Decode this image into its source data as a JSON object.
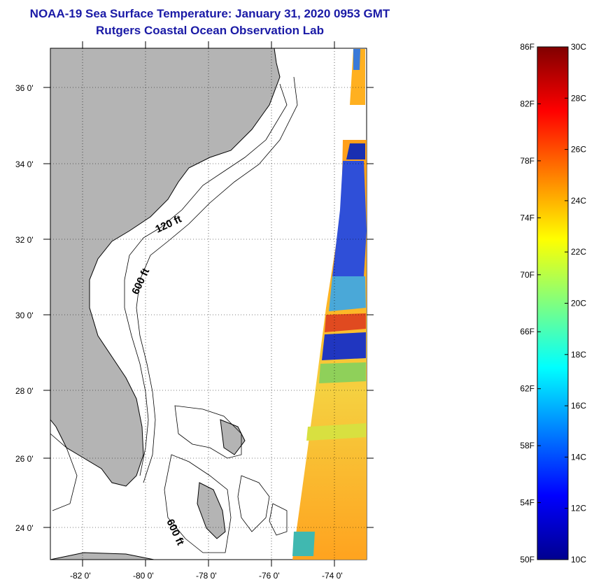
{
  "title": {
    "line1": "NOAA-19 Sea Surface Temperature:  January 31, 2020 0953 GMT",
    "line2": "Rutgers Coastal Ocean Observation Lab"
  },
  "map": {
    "lat_labels": [
      "36 0'",
      "34 0'",
      "32 0'",
      "30 0'",
      "28 0'",
      "26 0'",
      "24 0'"
    ],
    "lon_labels": [
      "-82 0'",
      "-80 0'",
      "-78 0'",
      "-76 0'",
      "-74 0'"
    ],
    "lat_range": [
      23,
      37
    ],
    "lon_range": [
      -83,
      -73
    ],
    "contour_labels": [
      "120 ft",
      "600 ft",
      "600 ft"
    ],
    "land_color": "#b4b4b4",
    "grid": true
  },
  "colorbar": {
    "fahrenheit_labels": [
      "86F",
      "82F",
      "78F",
      "74F",
      "70F",
      "66F",
      "62F",
      "58F",
      "54F",
      "50F"
    ],
    "celsius_labels": [
      "30C",
      "28C",
      "26C",
      "24C",
      "22C",
      "20C",
      "18C",
      "16C",
      "14C",
      "12C",
      "10C"
    ],
    "range_c": [
      10,
      30
    ],
    "colormap": "jet"
  }
}
